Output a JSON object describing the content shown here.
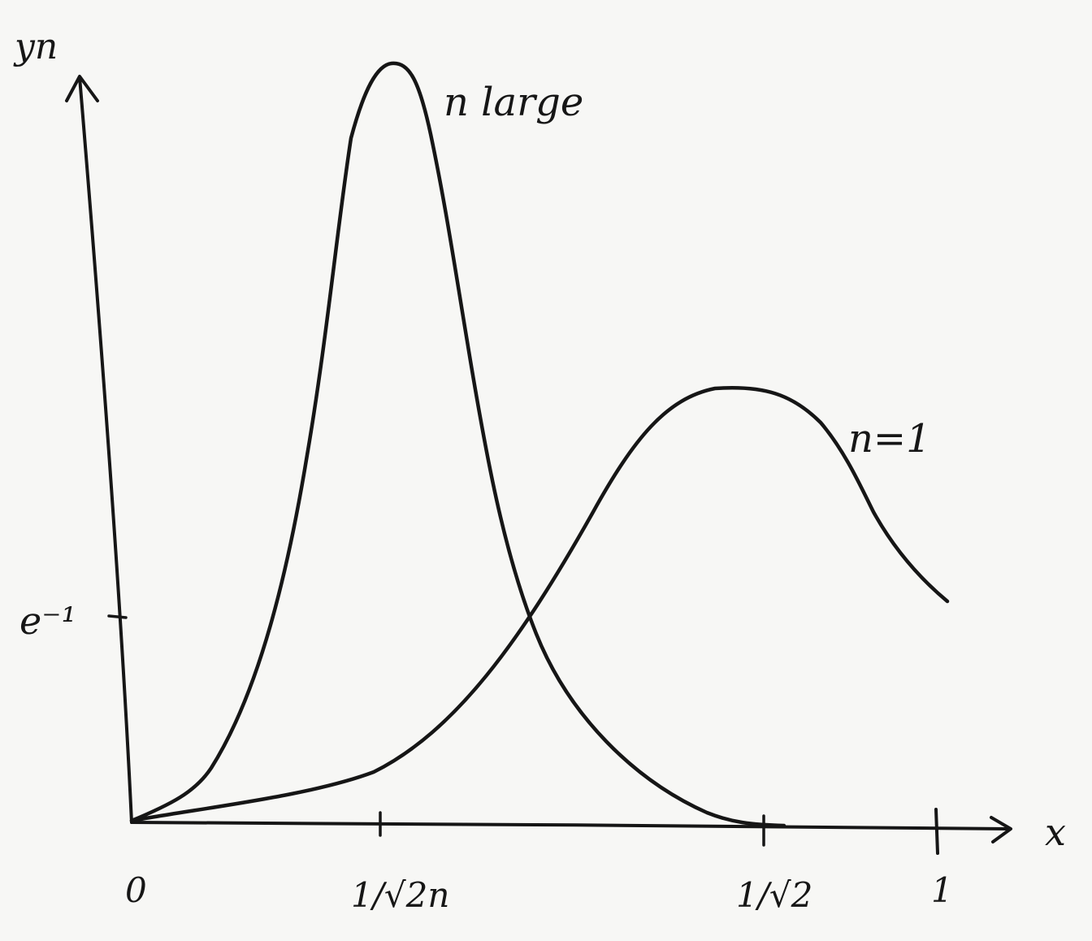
{
  "figure": {
    "y_axis_label": "yn",
    "x_axis_label": "x",
    "origin_label": "0",
    "y_tick_label": "e⁻¹",
    "x_tick_labels": [
      "1/√2n",
      "1/√2",
      "1"
    ],
    "curve_labels": {
      "large_n": "n large",
      "n_equals_1": "n=1"
    }
  },
  "colors": {
    "paper": "#f7f7f5",
    "ink": "#161616"
  }
}
